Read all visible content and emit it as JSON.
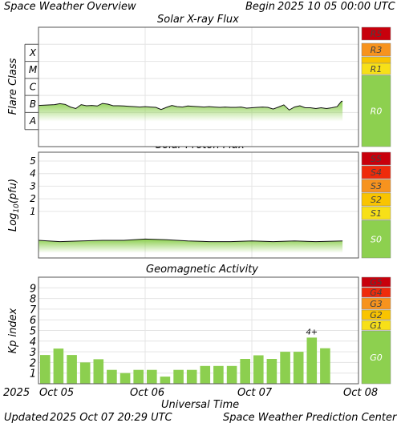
{
  "header": {
    "title": "Space Weather Overview",
    "begin_label": "Begin",
    "begin_value": "2025 10 05 00:00 UTC"
  },
  "footer": {
    "updated_label": "Updated",
    "updated_value": "2025 Oct 07 20:29 UTC",
    "center": "Space Weather Prediction Center"
  },
  "time_axis": {
    "title": "Universal Time",
    "year": "2025",
    "ticks": [
      "Oct 05",
      "Oct 06",
      "Oct 07",
      "Oct 08"
    ]
  },
  "colors": {
    "fill_green": "#8ccf4f",
    "scale_none": "#8dd04f",
    "scale_1": "#f7e018",
    "scale_2": "#f9c400",
    "scale_3": "#f7931e",
    "scale_4": "#ef2b0b",
    "scale_5": "#c8000c"
  },
  "chart_data": [
    {
      "type": "line",
      "title": "Solar X-ray Flux",
      "ylabel": "Flare Class",
      "y_scale": "log",
      "ylim": [
        1e-09,
        0.01
      ],
      "y_ticks": [
        "A",
        "B",
        "C",
        "M",
        "X"
      ],
      "x": [
        0.0,
        0.15,
        0.2,
        0.25,
        0.3,
        0.35,
        0.4,
        0.45,
        0.5,
        0.55,
        0.6,
        0.65,
        0.7,
        0.75,
        0.8,
        0.85,
        0.9,
        0.95,
        1.0,
        1.05,
        1.1,
        1.15,
        1.2,
        1.25,
        1.3,
        1.35,
        1.4,
        1.45,
        1.5,
        1.55,
        1.6,
        1.65,
        1.7,
        1.75,
        1.8,
        1.85,
        1.9,
        1.95,
        2.0,
        2.05,
        2.1,
        2.15,
        2.2,
        2.25,
        2.3,
        2.35,
        2.4,
        2.45,
        2.5,
        2.55,
        2.6,
        2.65,
        2.7,
        2.75,
        2.8,
        2.82,
        2.84,
        2.85
      ],
      "series": [
        {
          "values": [
            2.6e-07,
            2.9e-07,
            3.3e-07,
            3e-07,
            2.1e-07,
            1.7e-07,
            2.9e-07,
            2.5e-07,
            2.6e-07,
            2.4e-07,
            3.4e-07,
            3.1e-07,
            2.5e-07,
            2.5e-07,
            2.4e-07,
            2.3e-07,
            2.2e-07,
            2.1e-07,
            2.2e-07,
            2.1e-07,
            2e-07,
            1.5e-07,
            2e-07,
            2.6e-07,
            2.2e-07,
            2.1e-07,
            2.4e-07,
            2.3e-07,
            2.2e-07,
            2.1e-07,
            2.2e-07,
            2.1e-07,
            2e-07,
            2.1e-07,
            2e-07,
            2e-07,
            2.1e-07,
            1.8e-07,
            1.9e-07,
            2e-07,
            2.1e-07,
            2e-07,
            1.6e-07,
            2.1e-07,
            2.8e-07,
            1.4e-07,
            2.1e-07,
            2.5e-07,
            1.9e-07,
            1.9e-07,
            1.7e-07,
            1.9e-07,
            1.7e-07,
            1.9e-07,
            2.2e-07,
            3.2e-07,
            4.5e-07,
            4.6e-07
          ]
        }
      ],
      "scale_labels": [
        "R0",
        "R1",
        "R3",
        "R5"
      ]
    },
    {
      "type": "line",
      "title": "Solar Proton Flux",
      "ylabel": "Log10(pfu)",
      "ylim": [
        -2.7,
        5.7
      ],
      "y_ticks": [
        "1",
        "2",
        "3",
        "4",
        "5"
      ],
      "x": [
        0.0,
        0.2,
        0.4,
        0.6,
        0.8,
        1.0,
        1.2,
        1.4,
        1.6,
        1.8,
        2.0,
        2.2,
        2.4,
        2.6,
        2.85
      ],
      "series": [
        {
          "values": [
            -1.3,
            -1.4,
            -1.35,
            -1.3,
            -1.3,
            -1.2,
            -1.25,
            -1.35,
            -1.4,
            -1.4,
            -1.35,
            -1.4,
            -1.35,
            -1.4,
            -1.35
          ]
        }
      ],
      "scale_labels": [
        "S0",
        "S1",
        "S2",
        "S3",
        "S4",
        "S5"
      ]
    },
    {
      "type": "bar",
      "title": "Geomagnetic Activity",
      "ylabel": "Kp index",
      "ylim": [
        0,
        10
      ],
      "y_ticks": [
        "1",
        "2",
        "3",
        "4",
        "5",
        "6",
        "7",
        "8",
        "9"
      ],
      "values": [
        2.7,
        3.3,
        2.7,
        2.0,
        2.3,
        1.3,
        1.0,
        1.3,
        1.3,
        0.67,
        1.3,
        1.3,
        1.67,
        1.67,
        1.67,
        2.33,
        2.67,
        2.33,
        3.0,
        3.0,
        4.33,
        3.33
      ],
      "annotations": [
        {
          "index": 20,
          "text": "4+"
        }
      ],
      "scale_labels": [
        "G0",
        "G1",
        "G2",
        "G3",
        "G4",
        "G5"
      ]
    }
  ]
}
